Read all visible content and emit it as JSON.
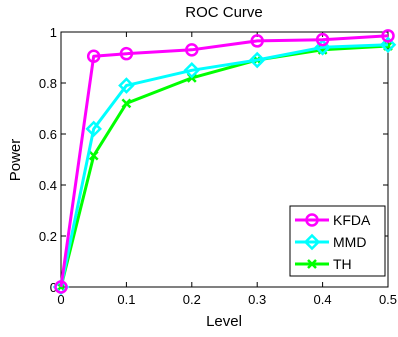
{
  "chart_data": {
    "type": "line",
    "title": "ROC Curve",
    "xlabel": "Level",
    "ylabel": "Power",
    "xlim": [
      0,
      0.5
    ],
    "ylim": [
      0,
      1
    ],
    "xticks": [
      0,
      0.1,
      0.2,
      0.3,
      0.4,
      0.5
    ],
    "xtick_labels": [
      "0",
      "0.1",
      "0.2",
      "0.3",
      "0.4",
      "0.5"
    ],
    "yticks": [
      0,
      0.2,
      0.4,
      0.6,
      0.8,
      1
    ],
    "ytick_labels": [
      "0",
      "0.2",
      "0.4",
      "0.6",
      "0.8",
      "1"
    ],
    "grid": false,
    "legend_position": "bottom-right",
    "x": [
      0,
      0.05,
      0.1,
      0.2,
      0.3,
      0.4,
      0.5
    ],
    "series": [
      {
        "name": "KFDA",
        "color": "#ff00ff",
        "marker": "circle",
        "values": [
          0,
          0.905,
          0.915,
          0.93,
          0.965,
          0.97,
          0.985
        ]
      },
      {
        "name": "MMD",
        "color": "#00ffff",
        "marker": "diamond",
        "values": [
          0,
          0.62,
          0.79,
          0.85,
          0.89,
          0.94,
          0.95
        ]
      },
      {
        "name": "TH",
        "color": "#00ff00",
        "marker": "x",
        "values": [
          0,
          0.515,
          0.72,
          0.82,
          0.89,
          0.93,
          0.945
        ]
      }
    ]
  }
}
